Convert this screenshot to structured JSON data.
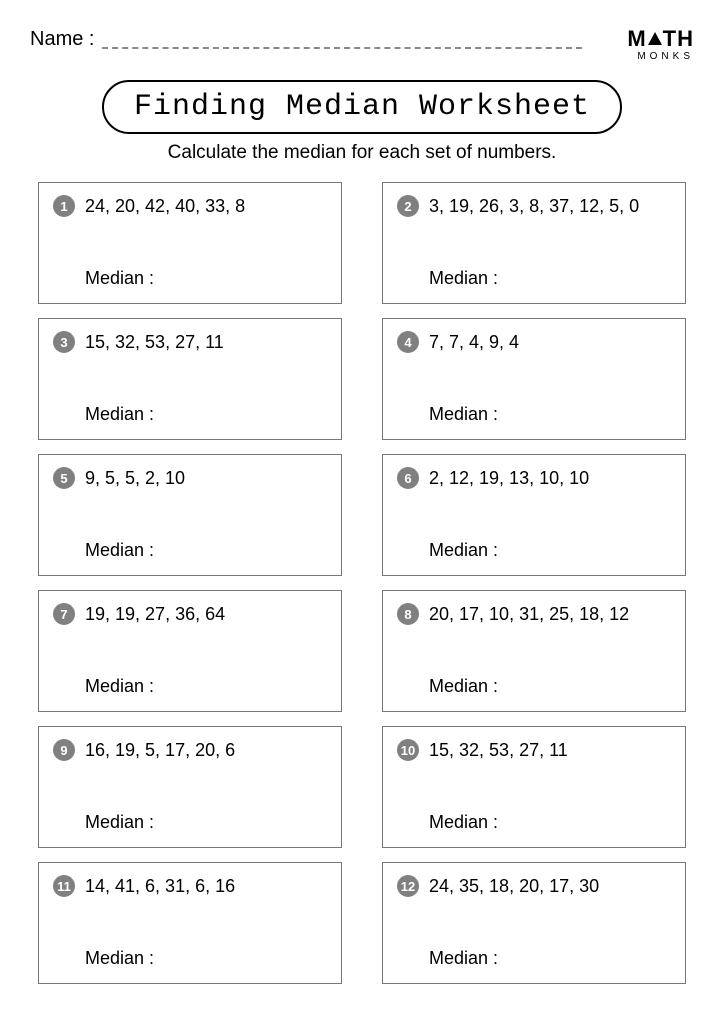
{
  "header": {
    "name_label": "Name :",
    "logo_top_left": "M",
    "logo_top_right": "TH",
    "logo_bottom": "MONKS"
  },
  "title": "Finding Median Worksheet",
  "instruction": "Calculate the median for each set of numbers.",
  "median_label": "Median :",
  "questions": [
    {
      "num": "1",
      "values": "24, 20, 42, 40, 33, 8"
    },
    {
      "num": "2",
      "values": "3, 19, 26, 3, 8, 37, 12, 5, 0"
    },
    {
      "num": "3",
      "values": "15, 32, 53, 27, 11"
    },
    {
      "num": "4",
      "values": "7, 7, 4, 9, 4"
    },
    {
      "num": "5",
      "values": "9, 5, 5, 2, 10"
    },
    {
      "num": "6",
      "values": "2, 12, 19, 13, 10, 10"
    },
    {
      "num": "7",
      "values": "19, 19, 27, 36, 64"
    },
    {
      "num": "8",
      "values": "20, 17, 10, 31, 25, 18, 12"
    },
    {
      "num": "9",
      "values": "16, 19, 5, 17, 20, 6"
    },
    {
      "num": "10",
      "values": "15, 32, 53, 27, 11"
    },
    {
      "num": "11",
      "values": "14, 41, 6, 31, 6, 16"
    },
    {
      "num": "12",
      "values": "24, 35, 18, 20, 17, 30"
    }
  ],
  "colors": {
    "badge_bg": "#808080",
    "badge_fg": "#ffffff",
    "border": "#777777",
    "background": "#ffffff",
    "text": "#000000"
  }
}
